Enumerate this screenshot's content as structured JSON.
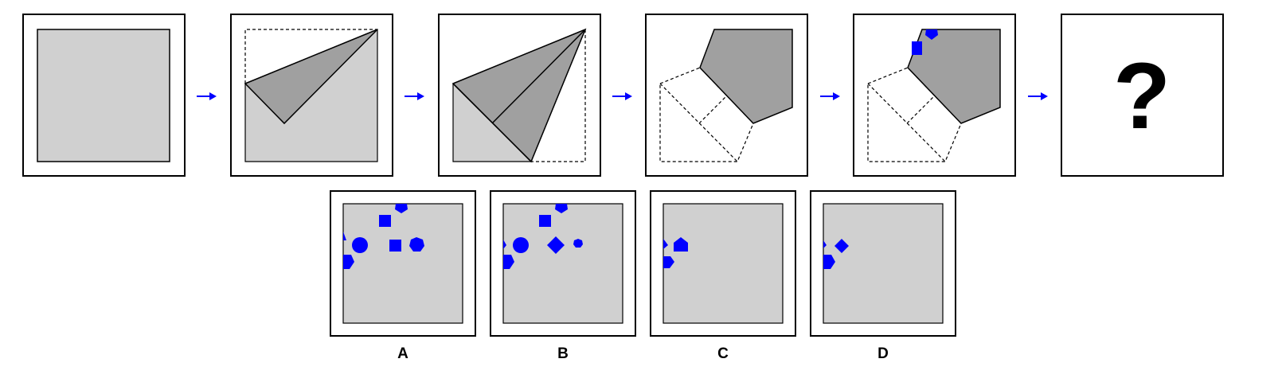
{
  "puzzle": {
    "question_mark": "?",
    "step_count": 5,
    "options": [
      {
        "label": "A"
      },
      {
        "label": "B"
      },
      {
        "label": "C"
      },
      {
        "label": "D"
      }
    ]
  },
  "colors": {
    "paper": "#d0d0d0",
    "folded_layer": "#a0a0a0",
    "cutout_shape": "#0000ff",
    "arrow": "#0000ff",
    "frame": "#000000",
    "background": "#ffffff"
  }
}
